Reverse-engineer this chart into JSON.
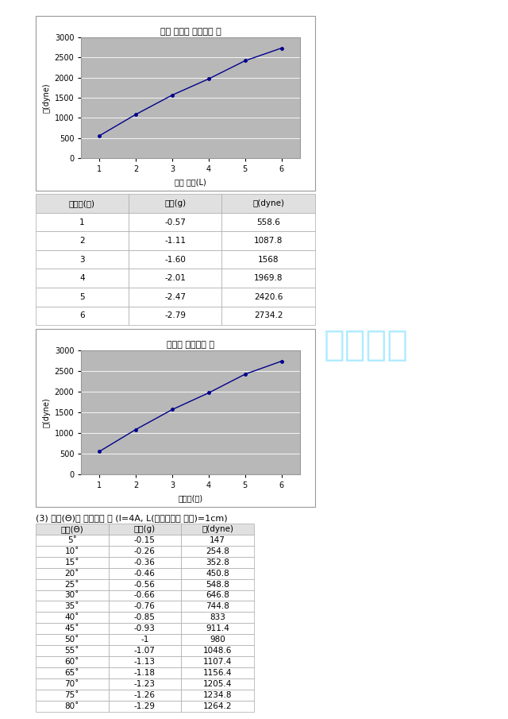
{
  "page_bg": "#ffffff",
  "content_bg": "#ffffff",
  "graph_bg": "#b8b8b8",
  "chart1": {
    "title": "도선 길이를 변화시킬 때",
    "x": [
      1,
      2,
      3,
      4,
      5,
      6
    ],
    "y": [
      558.6,
      1087.8,
      1568,
      1969.8,
      2420.6,
      2734.2
    ],
    "xlabel": "도선 길이(L)",
    "ylabel": "힘(dyne)",
    "ylim": [
      0,
      3000
    ],
    "yticks": [
      0,
      500,
      1000,
      1500,
      2000,
      2500,
      3000
    ],
    "xticks": [
      1,
      2,
      3,
      4,
      5,
      6
    ]
  },
  "table1": {
    "headers": [
      "자석수(개)",
      "질량(g)",
      "힘(dyne)"
    ],
    "rows": [
      [
        "1",
        "-0.57",
        "558.6"
      ],
      [
        "2",
        "-1.11",
        "1087.8"
      ],
      [
        "3",
        "-1.60",
        "1568"
      ],
      [
        "4",
        "-2.01",
        "1969.8"
      ],
      [
        "5",
        "-2.47",
        "2420.6"
      ],
      [
        "6",
        "-2.79",
        "2734.2"
      ]
    ]
  },
  "chart2": {
    "title": "자기장 변화시킬 때",
    "x": [
      1,
      2,
      3,
      4,
      5,
      6
    ],
    "y": [
      558.6,
      1087.8,
      1568,
      1969.8,
      2420.6,
      2734.2
    ],
    "xlabel": "자석수(개)",
    "ylabel": "힘(dyne)",
    "ylim": [
      0,
      3000
    ],
    "yticks": [
      0,
      500,
      1000,
      1500,
      2000,
      2500,
      3000
    ],
    "xticks": [
      1,
      2,
      3,
      4,
      5,
      6
    ]
  },
  "section3_title": "(3) 각도(Θ)를 변화시킬 때 (I=4A, L(효크도선의 길이)=1cm)",
  "table3": {
    "headers": [
      "각도(Θ)",
      "질량(g)",
      "힘(dyne)"
    ],
    "rows": [
      [
        "5˚",
        "-0.15",
        "147"
      ],
      [
        "10˚",
        "-0.26",
        "254.8"
      ],
      [
        "15˚",
        "-0.36",
        "352.8"
      ],
      [
        "20˚",
        "-0.46",
        "450.8"
      ],
      [
        "25˚",
        "-0.56",
        "548.8"
      ],
      [
        "30˚",
        "-0.66",
        "646.8"
      ],
      [
        "35˚",
        "-0.76",
        "744.8"
      ],
      [
        "40˚",
        "-0.85",
        "833"
      ],
      [
        "45˚",
        "-0.93",
        "911.4"
      ],
      [
        "50˚",
        "-1",
        "980"
      ],
      [
        "55˚",
        "-1.07",
        "1048.6"
      ],
      [
        "60˚",
        "-1.13",
        "1107.4"
      ],
      [
        "65˚",
        "-1.18",
        "1156.4"
      ],
      [
        "70˚",
        "-1.23",
        "1205.4"
      ],
      [
        "75˚",
        "-1.26",
        "1234.8"
      ],
      [
        "80˚",
        "-1.29",
        "1264.2"
      ]
    ]
  },
  "line_color": "#00008B",
  "marker_color": "#00008B",
  "font_size_title": 8,
  "font_size_tick": 7,
  "font_size_label": 7,
  "font_size_table": 7.5,
  "watermark_text": "예비보기",
  "watermark_color": "#00BFFF",
  "watermark_alpha": 0.3
}
